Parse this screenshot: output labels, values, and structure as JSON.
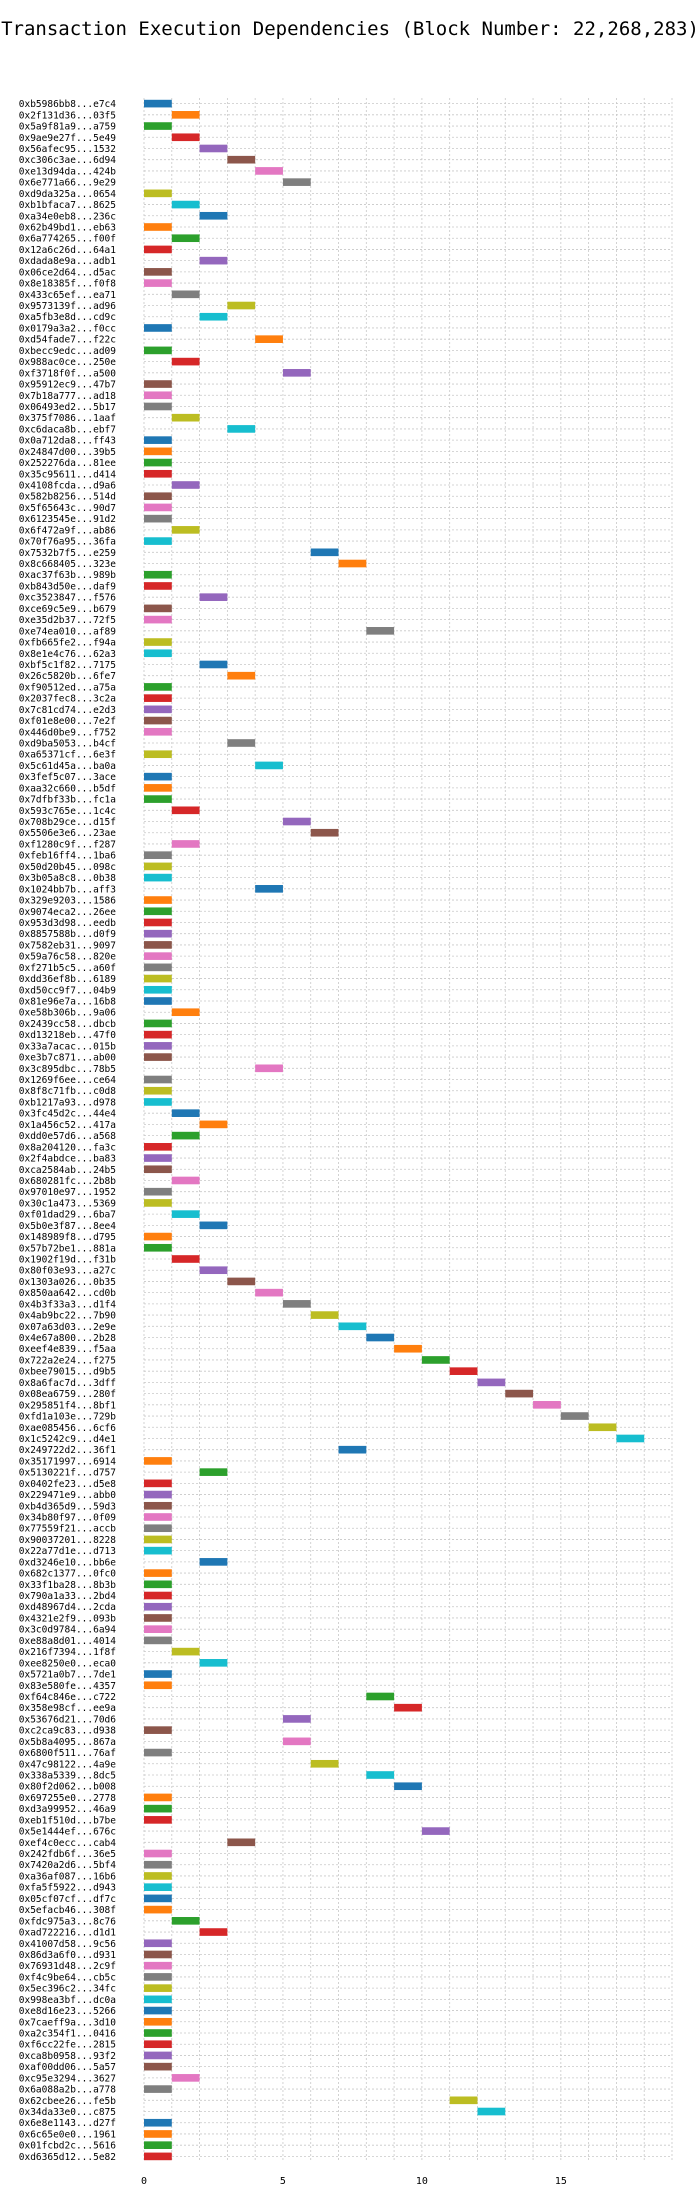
{
  "chart_data": {
    "type": "bar",
    "orientation": "horizontal-gantt",
    "title": "Transaction Execution Dependencies (Block Number: 22,268,283)",
    "xlabel": "",
    "ylabel": "",
    "xlim": [
      0,
      19
    ],
    "x_ticks": [
      0,
      5,
      10,
      15
    ],
    "grid": true,
    "grid_style": "dotted",
    "legend": "none",
    "palette": [
      "#1f77b4",
      "#ff7f0e",
      "#2ca02c",
      "#d62728",
      "#9467bd",
      "#8c564b",
      "#e377c2",
      "#7f7f7f",
      "#bcbd22",
      "#17becf"
    ],
    "bar_width": 1,
    "categories": [
      "0xb5986bb8...e7c4",
      "0x2f131d36...03f5",
      "0x5a9f81a9...a759",
      "0x9ae9e27f...5e49",
      "0x56afec95...1532",
      "0xc306c3ae...6d94",
      "0xe13d94da...424b",
      "0x6e771a66...9e29",
      "0xd9da325a...0654",
      "0xb1bfaca7...8625",
      "0xa34e0eb8...236c",
      "0x62b49bd1...eb63",
      "0x6a774265...f00f",
      "0x12a6c26d...64a1",
      "0xdada8e9a...adb1",
      "0x06ce2d64...d5ac",
      "0x8e18385f...f0f8",
      "0x433c65ef...ea71",
      "0x9573139f...ad96",
      "0xa5fb3e8d...cd9c",
      "0x0179a3a2...f0cc",
      "0xd54fade7...f22c",
      "0xbecc9edc...ad09",
      "0x988ac0ce...250e",
      "0xf3718f0f...a500",
      "0x95912ec9...47b7",
      "0x7b18a777...ad18",
      "0x06493ed2...5b17",
      "0x375f7086...1aaf",
      "0xc6dac a8b...ebf7",
      "0x0a712da8...ff43",
      "0x24847d00...39b5",
      "0x252276da...81ee",
      "0x35c95611...d414",
      "0x4108fcda...d9a6",
      "0x582b8256...514d",
      "0x5f65643c...90d7",
      "0x6123545e...91d2",
      "0x6f472a9f...ab86",
      "0x70f76a95...36fa",
      "0x7532b7f5...e259",
      "0x8c668405...323e",
      "0xac37f63b...989b",
      "0xb843d50e...daf9",
      "0xc3523847...f576",
      "0xce69c5e9...b679",
      "0xe35d2b37...72f5",
      "0xe74ea010...af89",
      "0xfb665fe2...f94a",
      "0x8e1e4c76...62a3",
      "0xbf5c1f82...7175",
      "0x26c5820b...6fe7",
      "0xf90512ed...a75a",
      "0x2037fec8...3c2a",
      "0x7c81cd74...e2d3",
      "0xf01e8e00...7e2f",
      "0x446d0be9...f752",
      "0xd9ba5053...b4cf",
      "0xa65371cf...6e3f",
      "0x5c61d45a...ba0a",
      "0x3fef5c07...3ace",
      "0xaa32c660...b5df",
      "0x7dfbf33b...fc1a",
      "0x593c765e...1c4c",
      "0x708b29ce...d15f",
      "0x5506e3e6...23ae",
      "0xf1280c9f...f287",
      "0xfeb16ff4...1ba6",
      "0x50d20b45...098c",
      "0x3b05a8c8...0b38",
      "0x1024bb7b...aff3",
      "0x329e9203...1586",
      "0x9074eca2...26ee",
      "0x953d3d98...eedb",
      "0x8857588b...d0f9",
      "0x7582eb31...9097",
      "0x59a76c58...820e",
      "0xf271b5c5...a60f",
      "0xdd36ef8b...6189",
      "0xd50cc9f7...04b9",
      "0x81e96e7a...16b8",
      "0xe58b306b...9a06",
      "0x2439cc58...dbcb",
      "0xd13218eb...47f0",
      "0x33a7acac...015b",
      "0xe3b7c871...ab00",
      "0x3c895dbc...78b5",
      "0x1269f6ee...ce64",
      "0x8f8c71fb...c0d8",
      "0xb1217a93...d978",
      "0x3fc45d2c...44e4",
      "0x1a456c52...417a",
      "0xdd0e57d6...a568",
      "0x8a204120...fa3c",
      "0x2f4abdce...ba83",
      "0xca2584ab...24b5",
      "0x680281fc...2b8b",
      "0x97010e97...1952",
      "0x30c1a473...5369",
      "0xf01dad29...6ba7",
      "0x5b0e3f87...8ee4",
      "0x148989f8...d795",
      "0x57b72be1...881a",
      "0x1902f19d...f31b",
      "0x80f03e93...a27c",
      "0x1303a026...0b35",
      "0x850aa642...cd0b",
      "0x4b3f33a3...d1f4",
      "0x4ab9bc22...7b90",
      "0x07a63d03...2e9e",
      "0x4e67a800...2b28",
      "0xeef4e839...f5aa",
      "0x722a2e24...f275",
      "0xbee79015...d9b5",
      "0x8a6fac7d...3dff",
      "0x08ea6759...280f",
      "0x295851f4...8bf1",
      "0xfd1a103e...729b",
      "0xae085456...6cf6",
      "0x1c5242c9...d4e1",
      "0x249722d2...36f1",
      "0x35171997...6914",
      "0x5130221f...d757",
      "0x0402fe23...d5e8",
      "0x229471e9...abb0",
      "0xb4d365d9...59d3",
      "0x34b80f97...0f09",
      "0x77559f21...accb",
      "0x90037201...8228",
      "0x22a77d1e...d713",
      "0xd3246e10...bb6e",
      "0x682c1377...0fc0",
      "0x33f1ba28...8b3b",
      "0x790a1a33...2bd4",
      "0xd48967d4...2cda",
      "0x4321e2f9...093b",
      "0x3c0d9784...6a94",
      "0xe88a8d01...4014",
      "0x216f7394...1f8f",
      "0xee8250e0...eca0",
      "0x5721a0b7...7de1",
      "0x83e580fe...4357",
      "0xf64c846e...c722",
      "0x358e98cf...ee9a",
      "0x53676d21...70d6",
      "0xc2ca9c83...d938",
      "0x5b8a4095...867a",
      "0x6800f511...76af",
      "0x47c98122...4a9e",
      "0x338a5339...8dc5",
      "0x80f2d062...b008",
      "0x697255e0...2778",
      "0xd3a99952...46a9",
      "0xeb1f510d...b7be",
      "0x5e1444ef...676c",
      "0xef4c0ecc...cab4",
      "0x242fdb6f...36e5",
      "0x7420a2d6...5bf4",
      "0xa36af087...16b6",
      "0xfa5f5922...d943",
      "0x05cf07cf...df7c",
      "0x5efacb46...308f",
      "0xfdc975a3...8c76",
      "0xad722216...d1d1",
      "0x41007d58...9c56",
      "0x86d3a6f0...d931",
      "0x76931d48...2c9f",
      "0xf4c9be64...cb5c",
      "0x5ec396c2...34fc",
      "0x998ea3bf...dc0a",
      "0xe8d16e23...5266",
      "0x7caeff9a...3d10",
      "0xa2c354f1...0416",
      "0xf6cc22fe...2815",
      "0xca8b0958...93f2",
      "0xaf00dd06...5a57",
      "0xc95e3294...3627",
      "0x6a088a2b...a778",
      "0x62cbee26...fe5b",
      "0x34da33e0...c875",
      "0x6e8e1143...d27f",
      "0x6c65e0e0...1961",
      "0x01fcbd2c...5616",
      "0xd6365d12...5e82"
    ],
    "start_values": [
      0,
      1,
      0,
      1,
      2,
      3,
      4,
      5,
      0,
      1,
      2,
      0,
      1,
      0,
      2,
      0,
      0,
      1,
      3,
      2,
      0,
      4,
      0,
      1,
      5,
      0,
      0,
      0,
      1,
      3,
      0,
      0,
      0,
      0,
      1,
      0,
      0,
      0,
      1,
      0,
      6,
      7,
      0,
      0,
      2,
      0,
      0,
      8,
      0,
      0,
      2,
      3,
      0,
      0,
      0,
      0,
      0,
      3,
      0,
      4,
      0,
      0,
      0,
      1,
      5,
      6,
      1,
      0,
      0,
      0,
      4,
      0,
      0,
      0,
      0,
      0,
      0,
      0,
      0,
      0,
      0,
      1,
      0,
      0,
      0,
      0,
      4,
      0,
      0,
      0,
      1,
      2,
      1,
      0,
      0,
      0,
      1,
      0,
      0,
      1,
      2,
      0,
      0,
      1,
      2,
      3,
      4,
      5,
      6,
      7,
      8,
      9,
      10,
      11,
      12,
      13,
      14,
      15,
      16,
      17,
      7,
      0,
      2,
      0,
      0,
      0,
      0,
      0,
      0,
      0,
      2,
      0,
      0,
      0,
      0,
      0,
      0,
      0,
      1,
      2,
      0,
      0,
      8,
      9,
      5,
      0,
      5,
      0,
      6,
      8,
      9,
      0,
      0,
      0,
      10,
      3,
      0,
      0,
      0,
      0,
      0,
      0,
      1,
      2,
      0,
      0,
      0,
      0,
      0,
      0,
      0,
      0,
      0,
      0,
      0,
      0,
      1,
      0,
      11,
      12,
      0,
      0,
      0,
      0
    ]
  }
}
